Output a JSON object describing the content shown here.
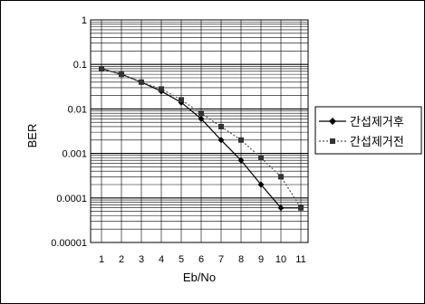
{
  "chart_data": {
    "type": "line",
    "title": "",
    "xlabel": "Eb/No",
    "ylabel": "BER",
    "yscale": "log",
    "ylim": [
      1e-05,
      1
    ],
    "xlim": [
      1,
      11
    ],
    "grid": true,
    "legend_position": "right",
    "x_tick_labels": [
      "1",
      "2",
      "3",
      "4",
      "5",
      "6",
      "7",
      "8",
      "9",
      "10",
      "11"
    ],
    "y_tick_labels": [
      "1",
      "0.1",
      "0.01",
      "0.001",
      "0.0001",
      "0.00001"
    ],
    "series": [
      {
        "name": "간섭제거후",
        "marker": "diamond",
        "line_style": "solid",
        "color": "#000000",
        "x": [
          1,
          2,
          3,
          4,
          5,
          6,
          7,
          8,
          9,
          10,
          11
        ],
        "y": [
          0.08,
          0.06,
          0.04,
          0.025,
          0.014,
          0.006,
          0.002,
          0.0007,
          0.0002,
          6e-05,
          6e-05
        ]
      },
      {
        "name": "간섭제거전",
        "marker": "square",
        "line_style": "dotted",
        "color": "#555555",
        "x": [
          1,
          2,
          3,
          4,
          5,
          6,
          7,
          8,
          9,
          10,
          11
        ],
        "y": [
          0.08,
          0.06,
          0.04,
          0.028,
          0.016,
          0.008,
          0.004,
          0.002,
          0.0008,
          0.0003,
          6e-05
        ]
      }
    ]
  }
}
